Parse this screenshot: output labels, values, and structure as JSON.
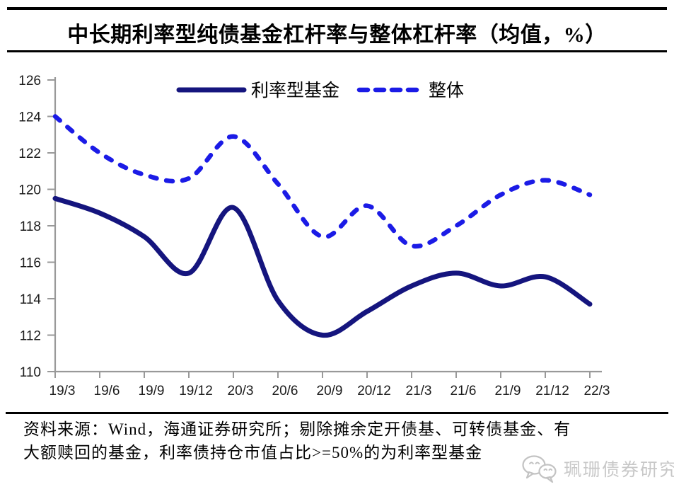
{
  "title": "中长期利率型纯债基金杠杆率与整体杠杆率（均值，%）",
  "chart_data": {
    "type": "line",
    "smoothed": true,
    "grid": false,
    "legend_position": "top-center",
    "categories": [
      "19/3",
      "19/6",
      "19/9",
      "19/12",
      "20/3",
      "20/6",
      "20/9",
      "20/12",
      "21/3",
      "21/6",
      "21/9",
      "21/12",
      "22/3"
    ],
    "series": [
      {
        "name": "利率型基金",
        "style": "solid",
        "color": "#15157E",
        "values": [
          119.5,
          118.7,
          117.4,
          115.4,
          119.0,
          113.9,
          112.0,
          113.3,
          114.7,
          115.4,
          114.7,
          115.2,
          113.7
        ]
      },
      {
        "name": "整体",
        "style": "dashed",
        "color": "#1B1BE6",
        "values": [
          124.0,
          122.0,
          120.8,
          120.6,
          122.9,
          120.3,
          117.4,
          119.1,
          116.9,
          118.0,
          119.7,
          120.5,
          119.7
        ]
      }
    ],
    "xlabel": "",
    "ylabel": "",
    "ylim": [
      110,
      126
    ],
    "ytick_step": 2,
    "axis_color": "#999999",
    "tick_label_color": "#1c1c1c"
  },
  "footer": {
    "line1": "资料来源：Wind，海通证券研究所；剔除摊余定开债基、可转债基金、有",
    "line2": "大额赎回的基金，利率债持仓市值占比>=50%的为利率型基金"
  },
  "watermark": {
    "icon": "wechat-icon",
    "text": "珮珊债券研究"
  }
}
